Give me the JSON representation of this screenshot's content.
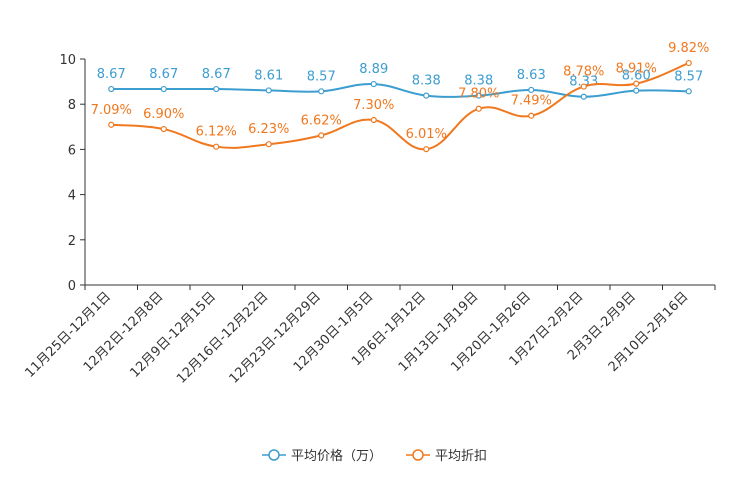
{
  "chart_data": {
    "type": "line",
    "title": "",
    "xlabel": "",
    "ylabel": "",
    "ylim": [
      0,
      10
    ],
    "yticks": [
      0,
      2,
      4,
      6,
      8,
      10
    ],
    "legend_position": "bottom-center",
    "categories": [
      "11月25日-12月1日",
      "12月2日-12月8日",
      "12月9日-12月15日",
      "12月16日-12月22日",
      "12月23日-12月29日",
      "12月30日-1月5日",
      "1月6日-1月12日",
      "1月13日-1月19日",
      "1月20日-1月26日",
      "1月27日-2月2日",
      "2月3日-2月9日",
      "2月10日-2月16日"
    ],
    "series": [
      {
        "name": "平均价格（万）",
        "color": "#3c9dd0",
        "values": [
          8.67,
          8.67,
          8.67,
          8.61,
          8.57,
          8.89,
          8.38,
          8.38,
          8.63,
          8.33,
          8.6,
          8.57
        ],
        "labels": [
          "8.67",
          "8.67",
          "8.67",
          "8.61",
          "8.57",
          "8.89",
          "8.38",
          "8.38",
          "8.63",
          "8.33",
          "8.60",
          "8.57"
        ]
      },
      {
        "name": "平均折扣",
        "color": "#f0781e",
        "values": [
          7.09,
          6.9,
          6.12,
          6.23,
          6.62,
          7.3,
          6.01,
          7.8,
          7.49,
          8.78,
          8.91,
          9.82
        ],
        "labels": [
          "7.09%",
          "6.90%",
          "6.12%",
          "6.23%",
          "6.62%",
          "7.30%",
          "6.01%",
          "7.80%",
          "7.49%",
          "8.78%",
          "8.91%",
          "9.82%"
        ]
      }
    ]
  }
}
